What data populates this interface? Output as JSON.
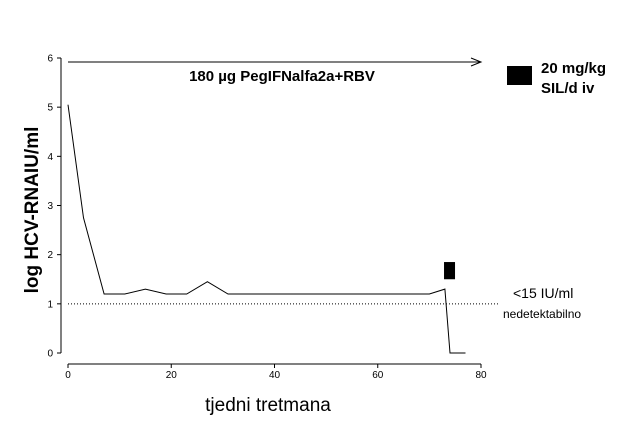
{
  "chart_data": {
    "type": "line",
    "xlabel": "tjedni tretmana",
    "ylabel": "log HCV-RNAIU/ml",
    "xlim": [
      0,
      80
    ],
    "ylim": [
      0,
      6
    ],
    "x_ticks": [
      0,
      20,
      40,
      60,
      80
    ],
    "y_ticks": [
      0,
      1,
      2,
      3,
      4,
      5,
      6
    ],
    "grid": false,
    "series": [
      {
        "x": [
          0,
          3,
          7,
          11,
          15,
          19,
          23,
          27,
          31,
          35,
          40,
          50,
          60,
          70,
          73,
          74,
          77
        ],
        "values": [
          5.05,
          2.75,
          1.2,
          1.2,
          1.3,
          1.2,
          1.2,
          1.45,
          1.2,
          1.2,
          1.2,
          1.2,
          1.2,
          1.2,
          1.3,
          0.0,
          0.0
        ]
      }
    ],
    "reference_line": {
      "y": 1.0,
      "style": "dotted",
      "label": "<15 IU/ml",
      "sublabel": "nedetektabilno"
    },
    "treatment_arrow": {
      "label": "180 µg PegIFNalfa2a+RBV",
      "x_start": 0,
      "x_end": 80
    },
    "sil_marker": {
      "x": 74,
      "y_from": 1.5,
      "y_to": 1.85,
      "color": "#000000"
    },
    "legend": {
      "label_line1": "20 mg/kg",
      "label_line2": "SIL/d iv",
      "position": "top-right"
    }
  }
}
